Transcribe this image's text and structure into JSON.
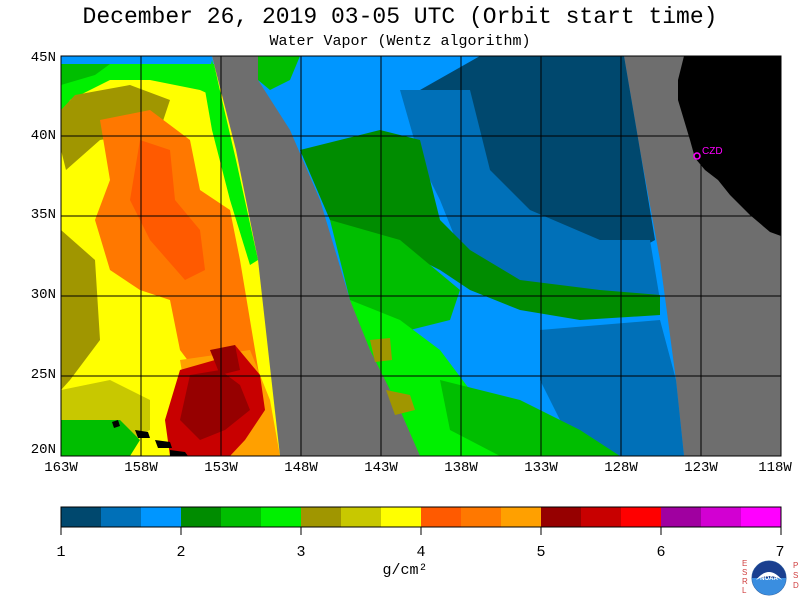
{
  "header": {
    "title": "December 26, 2019  03-05 UTC  (Orbit start time)",
    "subtitle": "Water Vapor (Wentz algorithm)"
  },
  "axes": {
    "lat_labels": [
      "45N",
      "40N",
      "35N",
      "30N",
      "25N",
      "20N"
    ],
    "lon_labels": [
      "163W",
      "158W",
      "153W",
      "148W",
      "143W",
      "138W",
      "133W",
      "128W",
      "123W",
      "118W"
    ],
    "lat_range": [
      20,
      45
    ],
    "lon_range": [
      -163,
      -118
    ]
  },
  "map": {
    "site_label": "CZD",
    "no_data_color": "#6e6e6e",
    "land_color": "#000000",
    "site_color": "#ff00ff"
  },
  "colorbar": {
    "tick_labels": [
      "1",
      "2",
      "3",
      "4",
      "5",
      "6",
      "7"
    ],
    "unit": "g/cm²",
    "range": [
      1,
      7
    ],
    "colors": [
      "#00486e",
      "#0070b8",
      "#0096ff",
      "#008c00",
      "#00be00",
      "#00f000",
      "#a09600",
      "#c8c800",
      "#ffff00",
      "#ff5a00",
      "#ff7800",
      "#ffa000",
      "#960000",
      "#c80000",
      "#ff0000",
      "#a000a0",
      "#d200d2",
      "#ff00ff"
    ]
  },
  "logo": {
    "name": "NOAA",
    "left_letters": "ESRL",
    "right_letters": "PSD"
  }
}
